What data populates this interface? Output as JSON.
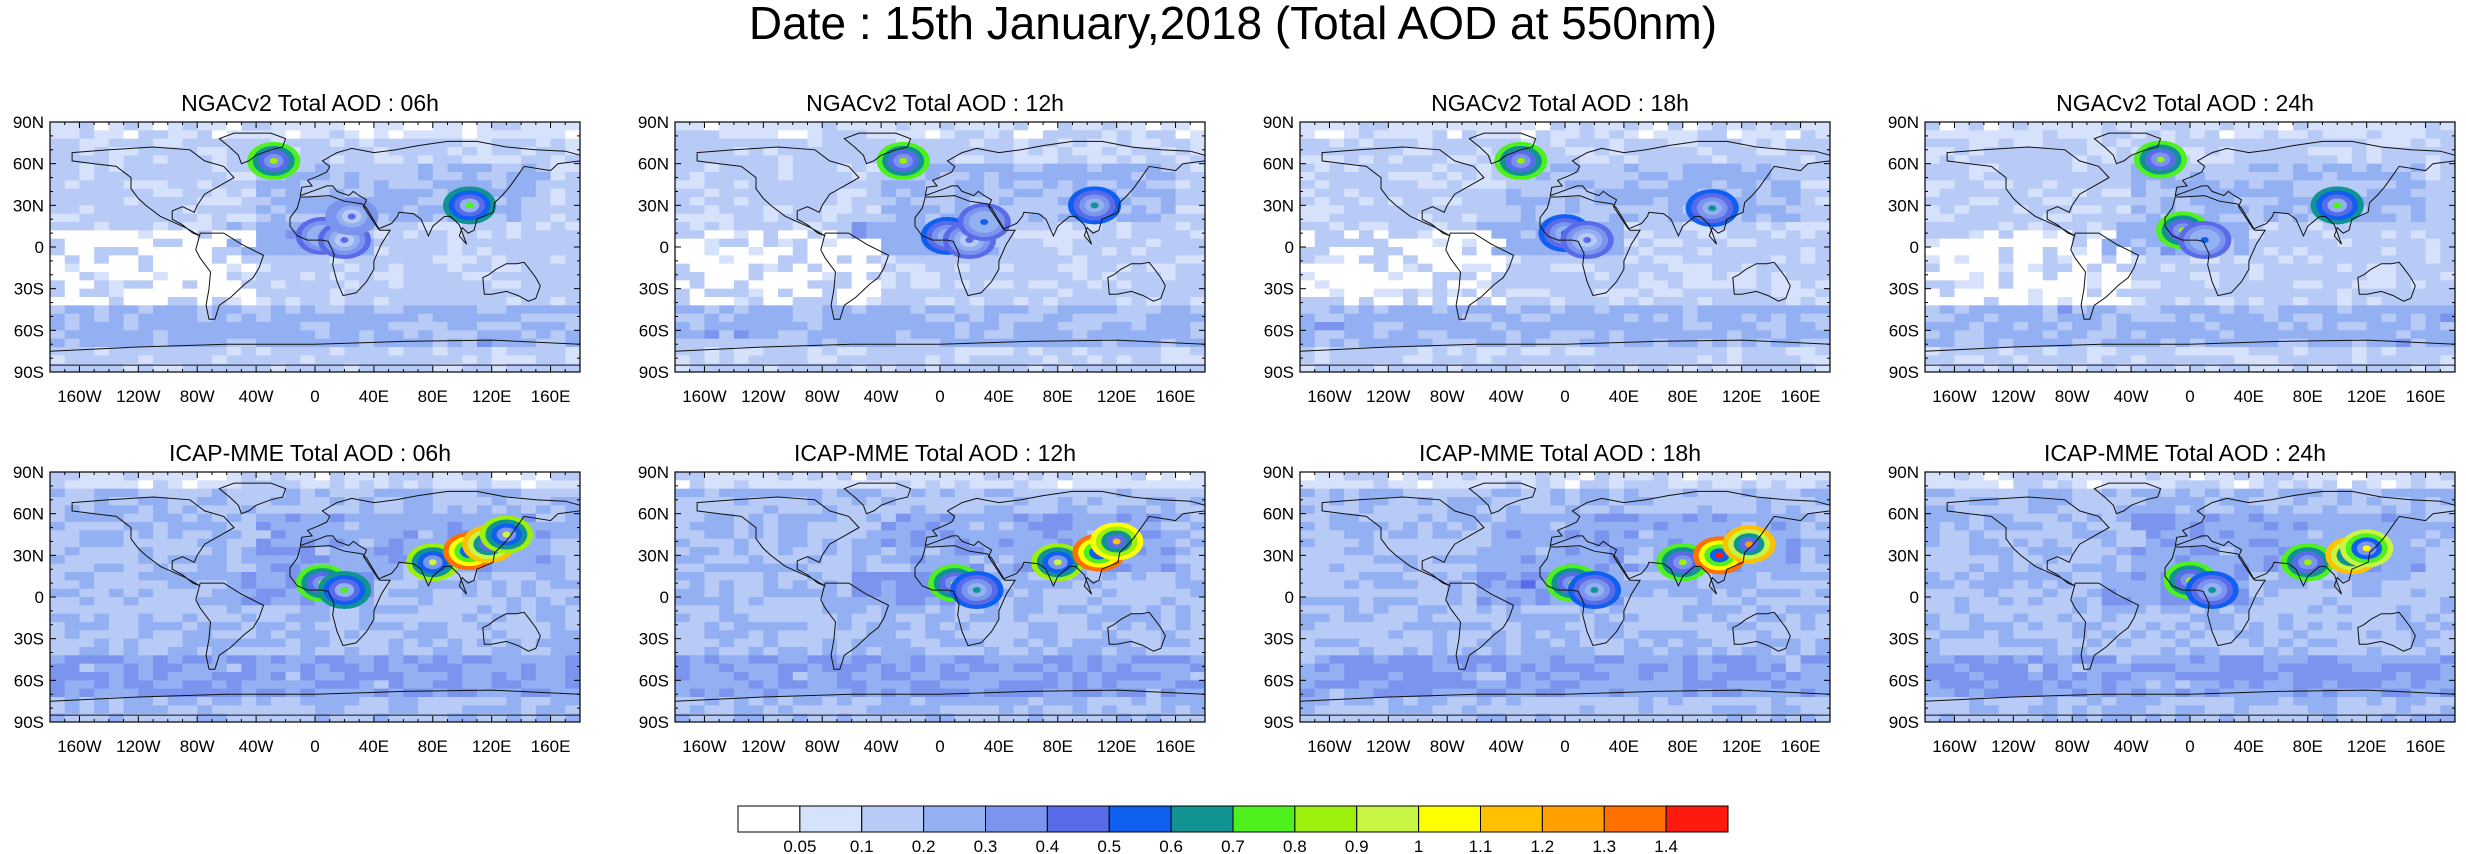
{
  "title": "Date : 15th January,2018 (Total AOD at 550nm)",
  "chart_data": [
    {
      "type": "heatmap",
      "title": "NGACv2 Total AOD : 06h",
      "model": "NGACv2",
      "hour": "06h",
      "xticklabels": [
        "160W",
        "120W",
        "80W",
        "40W",
        "0",
        "40E",
        "80E",
        "120E",
        "160E"
      ],
      "yticklabels": [
        "90N",
        "60N",
        "30N",
        "0",
        "30S",
        "60S",
        "90S"
      ],
      "xlim": [
        -180,
        180
      ],
      "ylim": [
        -90,
        90
      ],
      "hotspots": [
        {
          "lon": 5,
          "lat": 8,
          "aod": 0.5
        },
        {
          "lon": 20,
          "lat": 5,
          "aod": 0.45
        },
        {
          "lon": 25,
          "lat": 22,
          "aod": 0.4
        },
        {
          "lon": 105,
          "lat": 30,
          "aod": 0.7
        },
        {
          "lon": -28,
          "lat": 62,
          "aod": 0.8
        }
      ]
    },
    {
      "type": "heatmap",
      "title": "NGACv2 Total AOD : 12h",
      "model": "NGACv2",
      "hour": "12h",
      "xticklabels": [
        "160W",
        "120W",
        "80W",
        "40W",
        "0",
        "40E",
        "80E",
        "120E",
        "160E"
      ],
      "yticklabels": [
        "90N",
        "60N",
        "30N",
        "0",
        "30S",
        "60S",
        "90S"
      ],
      "xlim": [
        -180,
        180
      ],
      "ylim": [
        -90,
        90
      ],
      "hotspots": [
        {
          "lon": 5,
          "lat": 8,
          "aod": 0.55
        },
        {
          "lon": 20,
          "lat": 5,
          "aod": 0.45
        },
        {
          "lon": 30,
          "lat": 18,
          "aod": 0.5
        },
        {
          "lon": 105,
          "lat": 30,
          "aod": 0.6
        },
        {
          "lon": -25,
          "lat": 62,
          "aod": 0.8
        }
      ]
    },
    {
      "type": "heatmap",
      "title": "NGACv2 Total AOD : 18h",
      "model": "NGACv2",
      "hour": "18h",
      "xticklabels": [
        "160W",
        "120W",
        "80W",
        "40W",
        "0",
        "40E",
        "80E",
        "120E",
        "160E"
      ],
      "yticklabels": [
        "90N",
        "60N",
        "30N",
        "0",
        "30S",
        "60S",
        "90S"
      ],
      "xlim": [
        -180,
        180
      ],
      "ylim": [
        -90,
        90
      ],
      "hotspots": [
        {
          "lon": 0,
          "lat": 10,
          "aod": 0.55
        },
        {
          "lon": 15,
          "lat": 5,
          "aod": 0.45
        },
        {
          "lon": 100,
          "lat": 28,
          "aod": 0.6
        },
        {
          "lon": -30,
          "lat": 62,
          "aod": 0.8
        }
      ]
    },
    {
      "type": "heatmap",
      "title": "NGACv2 Total AOD : 24h",
      "model": "NGACv2",
      "hour": "24h",
      "xticklabels": [
        "160W",
        "120W",
        "80W",
        "40W",
        "0",
        "40E",
        "80E",
        "120E",
        "160E"
      ],
      "yticklabels": [
        "90N",
        "60N",
        "30N",
        "0",
        "30S",
        "60S",
        "90S"
      ],
      "xlim": [
        -180,
        180
      ],
      "ylim": [
        -90,
        90
      ],
      "hotspots": [
        {
          "lon": -5,
          "lat": 12,
          "aod": 0.8
        },
        {
          "lon": 10,
          "lat": 5,
          "aod": 0.5
        },
        {
          "lon": 100,
          "lat": 30,
          "aod": 0.7
        },
        {
          "lon": -20,
          "lat": 63,
          "aod": 0.8
        }
      ]
    },
    {
      "type": "heatmap",
      "title": "ICAP-MME Total AOD : 06h",
      "model": "ICAP-MME",
      "hour": "06h",
      "xticklabels": [
        "160W",
        "120W",
        "80W",
        "40W",
        "0",
        "40E",
        "80E",
        "120E",
        "160E"
      ],
      "yticklabels": [
        "90N",
        "60N",
        "30N",
        "0",
        "30S",
        "60S",
        "90S"
      ],
      "xlim": [
        -180,
        180
      ],
      "ylim": [
        -90,
        90
      ],
      "hotspots": [
        {
          "lon": 5,
          "lat": 10,
          "aod": 0.8
        },
        {
          "lon": 20,
          "lat": 5,
          "aod": 0.7
        },
        {
          "lon": 80,
          "lat": 25,
          "aod": 0.9
        },
        {
          "lon": 105,
          "lat": 33,
          "aod": 1.4
        },
        {
          "lon": 118,
          "lat": 38,
          "aod": 1.2
        },
        {
          "lon": 130,
          "lat": 45,
          "aod": 0.9
        }
      ]
    },
    {
      "type": "heatmap",
      "title": "ICAP-MME Total AOD : 12h",
      "model": "ICAP-MME",
      "hour": "12h",
      "xticklabels": [
        "160W",
        "120W",
        "80W",
        "40W",
        "0",
        "40E",
        "80E",
        "120E",
        "160E"
      ],
      "yticklabels": [
        "90N",
        "60N",
        "30N",
        "0",
        "30S",
        "60S",
        "90S"
      ],
      "xlim": [
        -180,
        180
      ],
      "ylim": [
        -90,
        90
      ],
      "hotspots": [
        {
          "lon": 10,
          "lat": 10,
          "aod": 0.8
        },
        {
          "lon": 25,
          "lat": 5,
          "aod": 0.6
        },
        {
          "lon": 80,
          "lat": 25,
          "aod": 0.9
        },
        {
          "lon": 108,
          "lat": 32,
          "aod": 1.4
        },
        {
          "lon": 120,
          "lat": 40,
          "aod": 1.1
        }
      ]
    },
    {
      "type": "heatmap",
      "title": "ICAP-MME Total AOD : 18h",
      "model": "ICAP-MME",
      "hour": "18h",
      "xticklabels": [
        "160W",
        "120W",
        "80W",
        "40W",
        "0",
        "40E",
        "80E",
        "120E",
        "160E"
      ],
      "yticklabels": [
        "90N",
        "60N",
        "30N",
        "0",
        "30S",
        "60S",
        "90S"
      ],
      "xlim": [
        -180,
        180
      ],
      "ylim": [
        -90,
        90
      ],
      "hotspots": [
        {
          "lon": 5,
          "lat": 10,
          "aod": 0.8
        },
        {
          "lon": 20,
          "lat": 5,
          "aod": 0.6
        },
        {
          "lon": 80,
          "lat": 25,
          "aod": 0.8
        },
        {
          "lon": 105,
          "lat": 30,
          "aod": 1.4
        },
        {
          "lon": 125,
          "lat": 38,
          "aod": 1.2
        }
      ]
    },
    {
      "type": "heatmap",
      "title": "ICAP-MME Total AOD : 24h",
      "model": "ICAP-MME",
      "hour": "24h",
      "xticklabels": [
        "160W",
        "120W",
        "80W",
        "40W",
        "0",
        "40E",
        "80E",
        "120E",
        "160E"
      ],
      "yticklabels": [
        "90N",
        "60N",
        "30N",
        "0",
        "30S",
        "60S",
        "90S"
      ],
      "xlim": [
        -180,
        180
      ],
      "ylim": [
        -90,
        90
      ],
      "hotspots": [
        {
          "lon": 0,
          "lat": 12,
          "aod": 0.8
        },
        {
          "lon": 15,
          "lat": 5,
          "aod": 0.6
        },
        {
          "lon": 80,
          "lat": 25,
          "aod": 0.8
        },
        {
          "lon": 110,
          "lat": 30,
          "aod": 1.2
        },
        {
          "lon": 120,
          "lat": 35,
          "aod": 1.0
        }
      ]
    }
  ],
  "colorbar": {
    "levels": [
      0.05,
      0.1,
      0.2,
      0.3,
      0.4,
      0.5,
      0.6,
      0.7,
      0.8,
      0.9,
      1,
      1.1,
      1.2,
      1.3,
      1.4
    ],
    "level_labels": [
      "0.05",
      "0.1",
      "0.2",
      "0.3",
      "0.4",
      "0.5",
      "0.6",
      "0.7",
      "0.8",
      "0.9",
      "1",
      "1.1",
      "1.2",
      "1.3",
      "1.4"
    ],
    "colors": [
      "#ffffff",
      "#d6e1fb",
      "#b8caf6",
      "#93b0f3",
      "#7b95ee",
      "#5a6bea",
      "#0f5ff0",
      "#119393",
      "#4ef11e",
      "#9cf00c",
      "#c8f544",
      "#ffff00",
      "#ffc000",
      "#ff9f00",
      "#ff7000",
      "#ff1a10"
    ]
  }
}
